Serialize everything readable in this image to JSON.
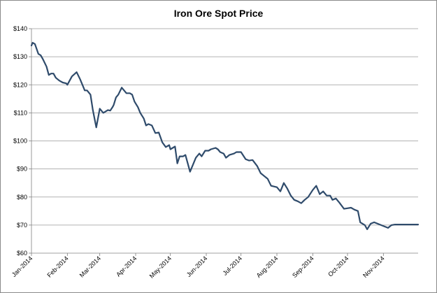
{
  "chart_data": {
    "type": "line",
    "title": "Iron Ore Spot Price",
    "xlabel": "",
    "ylabel": "",
    "ylim": [
      60,
      140
    ],
    "yticks": [
      60,
      70,
      80,
      90,
      100,
      110,
      120,
      130,
      140
    ],
    "ytick_labels": [
      "$60",
      "$70",
      "$80",
      "$90",
      "$100",
      "$110",
      "$120",
      "$130",
      "$140"
    ],
    "xlim": [
      "2014-01-01",
      "2014-12-01"
    ],
    "xticks": [
      "2014-01-01",
      "2014-02-01",
      "2014-03-01",
      "2014-04-01",
      "2014-05-01",
      "2014-06-01",
      "2014-07-01",
      "2014-08-01",
      "2014-09-01",
      "2014-10-01",
      "2014-11-01"
    ],
    "xtick_labels": [
      "Jan-2014",
      "Feb-2014",
      "Mar-2014",
      "Apr-2014",
      "May-2014",
      "Jun-2014",
      "Jul-2014",
      "Aug-2014",
      "Sep-2014",
      "Oct-2014",
      "Nov-2014"
    ],
    "grid": "horizontal",
    "legend": "none",
    "line_color": "#2f4b6b",
    "series": [
      {
        "x": [
          "2014-01-01",
          "2014-01-02",
          "2014-01-04",
          "2014-01-07",
          "2014-01-09",
          "2014-01-11",
          "2014-01-14",
          "2014-01-16",
          "2014-01-18",
          "2014-01-20",
          "2014-01-22",
          "2014-01-25",
          "2014-01-28",
          "2014-01-31",
          "2014-02-01",
          "2014-02-05",
          "2014-02-09",
          "2014-02-12",
          "2014-02-14",
          "2014-02-16",
          "2014-02-18",
          "2014-02-21",
          "2014-02-23",
          "2014-02-26",
          "2014-03-01",
          "2014-03-04",
          "2014-03-06",
          "2014-03-08",
          "2014-03-10",
          "2014-03-12",
          "2014-03-13",
          "2014-03-15",
          "2014-03-17",
          "2014-03-20",
          "2014-03-24",
          "2014-03-27",
          "2014-03-29",
          "2014-03-31",
          "2014-04-03",
          "2014-04-05",
          "2014-04-08",
          "2014-04-10",
          "2014-04-12",
          "2014-04-15",
          "2014-04-18",
          "2014-04-21",
          "2014-04-24",
          "2014-04-27",
          "2014-04-30",
          "2014-05-01",
          "2014-05-05",
          "2014-05-07",
          "2014-05-09",
          "2014-05-12",
          "2014-05-14",
          "2014-05-16",
          "2014-05-18",
          "2014-05-21",
          "2014-05-23",
          "2014-05-26",
          "2014-05-28",
          "2014-05-31",
          "2014-06-03",
          "2014-06-05",
          "2014-06-09",
          "2014-06-11",
          "2014-06-13",
          "2014-06-16",
          "2014-06-18",
          "2014-06-21",
          "2014-06-25",
          "2014-06-27",
          "2014-07-01",
          "2014-07-05",
          "2014-07-08",
          "2014-07-11",
          "2014-07-15",
          "2014-07-18",
          "2014-07-21",
          "2014-07-24",
          "2014-07-27",
          "2014-08-01",
          "2014-08-04",
          "2014-08-07",
          "2014-08-10",
          "2014-08-13",
          "2014-08-16",
          "2014-08-19",
          "2014-08-22",
          "2014-08-25",
          "2014-08-28",
          "2014-09-01",
          "2014-09-04",
          "2014-09-07",
          "2014-09-10",
          "2014-09-13",
          "2014-09-16",
          "2014-09-18",
          "2014-09-21",
          "2014-09-24",
          "2014-09-28",
          "2014-10-01",
          "2014-10-04",
          "2014-10-07",
          "2014-10-10",
          "2014-10-12",
          "2014-10-14",
          "2014-10-16",
          "2014-10-18",
          "2014-10-21",
          "2014-10-24",
          "2014-10-27",
          "2014-10-30",
          "2014-11-02",
          "2014-11-05",
          "2014-11-08",
          "2014-11-11",
          "2014-11-13",
          "2014-11-16",
          "2014-11-19",
          "2014-11-21",
          "2014-11-23",
          "2014-11-25",
          "2014-11-27",
          "2014-11-29",
          "2014-12-01"
        ],
        "values": [
          134.0,
          135.0,
          134.5,
          131.0,
          130.5,
          129.0,
          126.5,
          123.5,
          124.0,
          124.0,
          122.5,
          121.5,
          120.8,
          120.5,
          120.0,
          123.0,
          124.5,
          122.0,
          120.0,
          118.0,
          118.0,
          116.5,
          111.0,
          104.8,
          111.5,
          110.0,
          110.5,
          111.0,
          110.8,
          112.0,
          112.8,
          115.5,
          116.5,
          119.0,
          117.0,
          117.0,
          116.5,
          114.0,
          112.0,
          110.0,
          108.0,
          105.5,
          106.0,
          105.5,
          102.8,
          103.0,
          99.5,
          97.8,
          98.5,
          97.0,
          98.0,
          92.0,
          94.5,
          94.5,
          95.0,
          92.0,
          89.0,
          92.0,
          94.0,
          95.5,
          94.5,
          96.5,
          96.5,
          97.0,
          97.5,
          97.0,
          96.0,
          95.5,
          94.0,
          95.0,
          95.5,
          96.0,
          96.0,
          93.5,
          93.0,
          93.2,
          91.0,
          88.5,
          87.5,
          86.5,
          84.0,
          83.5,
          82.0,
          85.0,
          83.0,
          80.5,
          79.0,
          78.5,
          77.8,
          79.0,
          80.0,
          82.5,
          84.0,
          81.0,
          82.0,
          80.5,
          80.5,
          79.0,
          79.5,
          78.0,
          75.8,
          76.0,
          76.2,
          75.5,
          75.0,
          71.0,
          70.5,
          70.0,
          68.5,
          70.5,
          71.0,
          70.5,
          70.0,
          69.5,
          69.0,
          70.0,
          70.2,
          70.2,
          70.2,
          70.2,
          70.2,
          70.2,
          70.2,
          70.2,
          70.2,
          70.2
        ]
      }
    ]
  }
}
